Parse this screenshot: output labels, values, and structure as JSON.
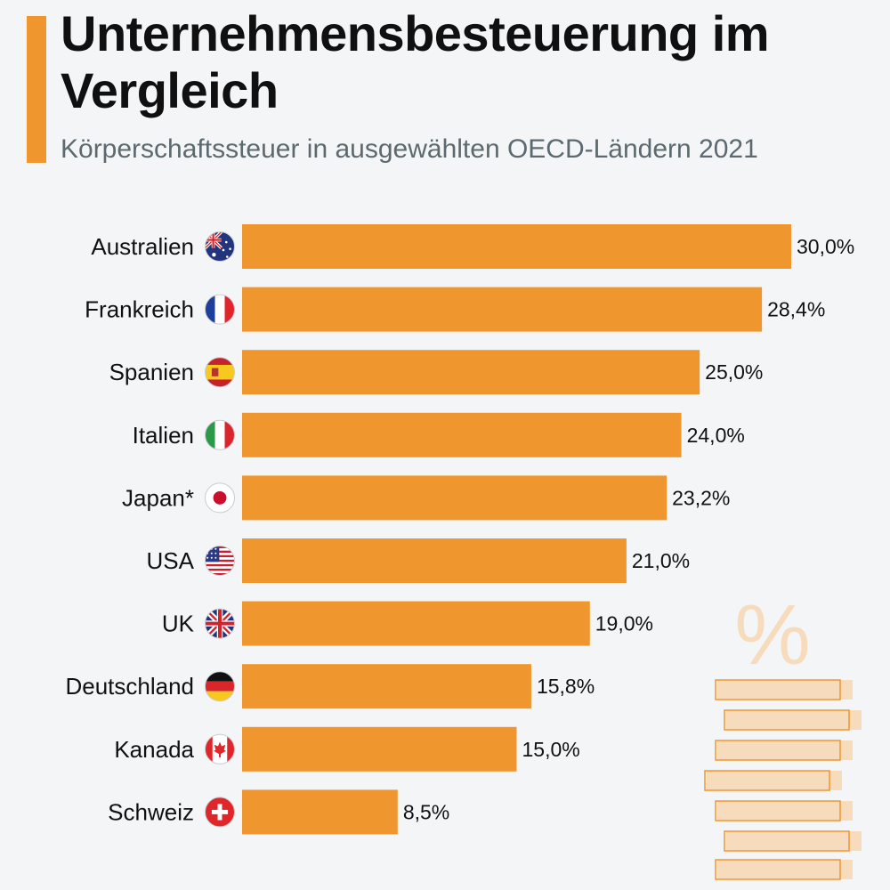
{
  "header": {
    "title": "Unternehmensbesteuerung im Vergleich",
    "subtitle": "Körperschaftssteuer in ausgewählten OECD-Ländern 2021"
  },
  "colors": {
    "bar": "#f0962e",
    "accent": "#f0962e",
    "text": "#111111",
    "subtitle": "#5c6a70",
    "background": "#f4f5f7",
    "decoration": "#f6dcbd"
  },
  "decoration": {
    "symbol": "%"
  },
  "chart_data": {
    "type": "bar",
    "orientation": "horizontal",
    "categories": [
      "Australien",
      "Frankreich",
      "Spanien",
      "Italien",
      "Japan*",
      "USA",
      "UK",
      "Deutschland",
      "Kanada",
      "Schweiz"
    ],
    "values": [
      30.0,
      28.4,
      25.0,
      24.0,
      23.2,
      21.0,
      19.0,
      15.8,
      15.0,
      8.5
    ],
    "value_labels": [
      "30,0%",
      "28,4%",
      "25,0%",
      "24,0%",
      "23,2%",
      "21,0%",
      "19,0%",
      "15,8%",
      "15,0%",
      "8,5%"
    ],
    "flags": [
      "australia-flag-icon",
      "france-flag-icon",
      "spain-flag-icon",
      "italy-flag-icon",
      "japan-flag-icon",
      "usa-flag-icon",
      "uk-flag-icon",
      "germany-flag-icon",
      "canada-flag-icon",
      "switzerland-flag-icon"
    ],
    "xlim": [
      0,
      30
    ],
    "grid": false,
    "legend": "none"
  }
}
